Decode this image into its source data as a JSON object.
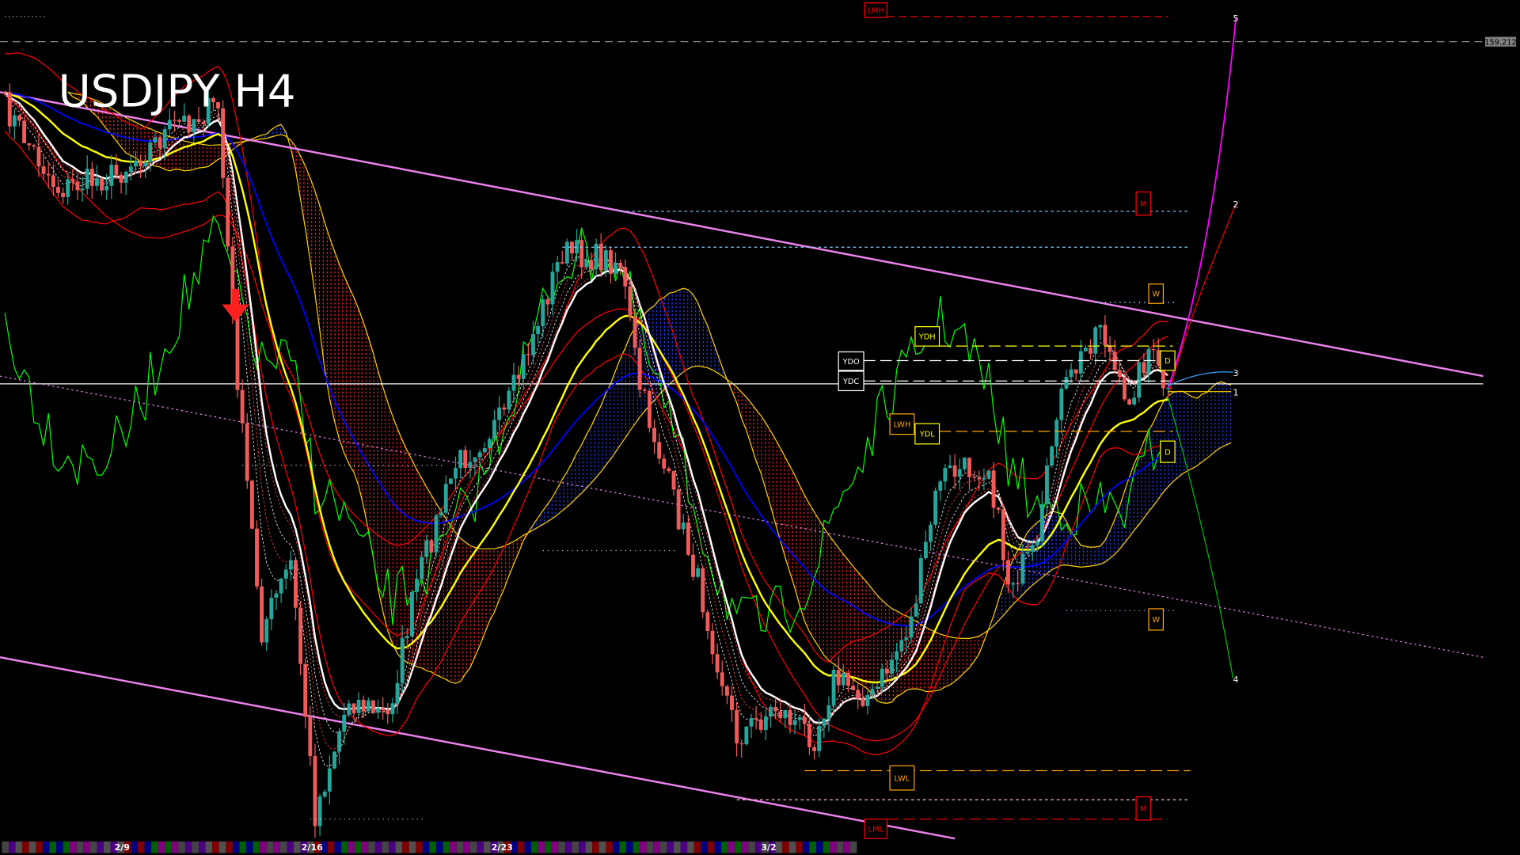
{
  "title": "USDJPY H4",
  "price_label": "159.212",
  "colors": {
    "background": "#000000",
    "bull_candle": "#26a69a",
    "bear_candle": "#f05a5a",
    "channel": "#ee82ee",
    "fast_ma": "#ffffff",
    "mid_ma": "#ffff00",
    "slow_ma": "#0000ff",
    "bands": "#ff0000",
    "oscillator": "#00ff00",
    "cloud_bear": "#ff2020",
    "cloud_bull": "#2040ff"
  },
  "levels": [
    {
      "label": "LMH",
      "color": "#ff0000"
    },
    {
      "label": "M",
      "color": "#ff0000"
    },
    {
      "label": "W",
      "color": "#ffa500"
    },
    {
      "label": "YDH",
      "color": "#ffff00"
    },
    {
      "label": "YDO",
      "color": "#ffffff"
    },
    {
      "label": "YDC",
      "color": "#ffffff"
    },
    {
      "label": "D",
      "color": "#ffff00"
    },
    {
      "label": "LWH",
      "color": "#ffa500"
    },
    {
      "label": "YDL",
      "color": "#ffff00"
    },
    {
      "label": "D",
      "color": "#ffff00"
    },
    {
      "label": "W",
      "color": "#ffa500"
    },
    {
      "label": "LWL",
      "color": "#ffa500"
    },
    {
      "label": "M",
      "color": "#ff0000"
    },
    {
      "label": "LML",
      "color": "#ff0000"
    }
  ],
  "projection_labels": [
    "5",
    "2",
    "3",
    "1",
    "4"
  ],
  "date_labels": [
    "2/9",
    "2/16",
    "2/23",
    "3/2"
  ],
  "signal_icon": "down-arrow-icon"
}
